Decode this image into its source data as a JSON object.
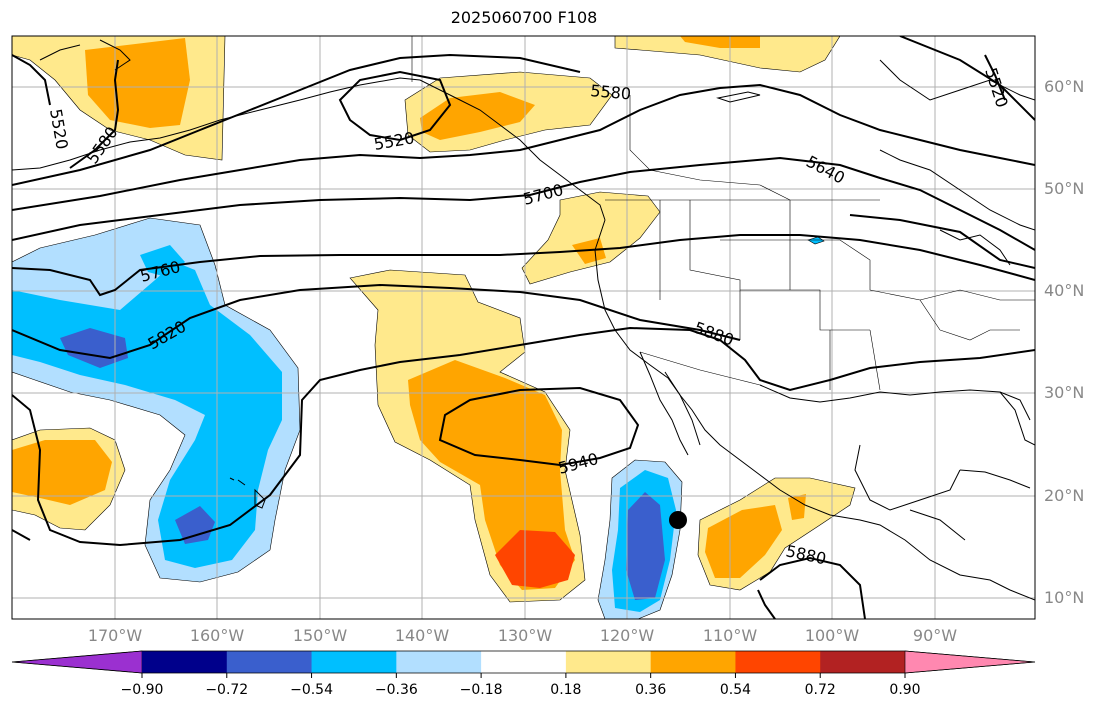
{
  "title": "2025060700 F108",
  "lat_labels": [
    "60°N",
    "50°N",
    "40°N",
    "30°N",
    "20°N",
    "10°N"
  ],
  "lon_labels": [
    "170°W",
    "160°W",
    "150°W",
    "140°W",
    "130°W",
    "120°W",
    "110°W",
    "100°W",
    "90°W"
  ],
  "contour_labels": [
    "5520",
    "5580",
    "5520",
    "5580",
    "5700",
    "5640",
    "5520",
    "5760",
    "5820",
    "5880",
    "5940",
    "5880"
  ],
  "colorbar": {
    "ticks": [
      "−0.90",
      "−0.72",
      "−0.54",
      "−0.36",
      "−0.18",
      "0.18",
      "0.36",
      "0.54",
      "0.72",
      "0.90"
    ],
    "colors": [
      "#9b30d0",
      "#00008b",
      "#3a5fcd",
      "#00bfff",
      "#b2dfff",
      "#ffffff",
      "#ffe98c",
      "#ffa500",
      "#ff4500",
      "#b22222",
      "#ff88b0"
    ]
  },
  "colors": {
    "pos_light": "#ffe98c",
    "pos_mid": "#ffa500",
    "pos_high": "#ff4500",
    "neg_light": "#b2dfff",
    "neg_mid": "#00bfff",
    "neg_high": "#3a5fcd",
    "grid": "#b0b0b0",
    "axis_label": "#888888"
  },
  "marker": "storm-position-dot"
}
